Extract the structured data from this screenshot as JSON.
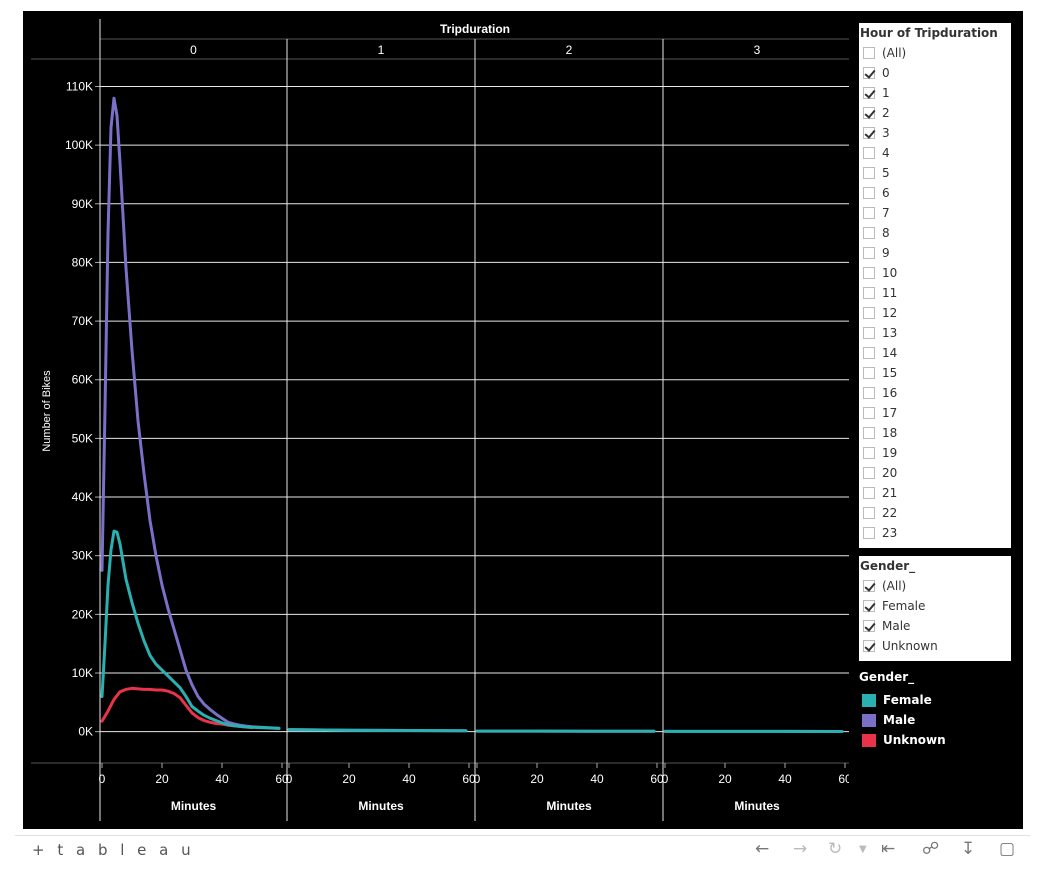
{
  "chart_data": {
    "type": "line",
    "column_header": "Tripduration",
    "panels": [
      "0",
      "1",
      "2",
      "3"
    ],
    "ylabel": "Number of Bikes",
    "xlabel": "Minutes",
    "ylim": [
      -5000,
      114000
    ],
    "yticks": [
      0,
      10000,
      20000,
      30000,
      40000,
      50000,
      60000,
      70000,
      80000,
      90000,
      100000,
      110000
    ],
    "ytick_labels": [
      "0K",
      "10K",
      "20K",
      "30K",
      "40K",
      "50K",
      "60K",
      "70K",
      "80K",
      "90K",
      "100K",
      "110K"
    ],
    "xlim": [
      0,
      60
    ],
    "xticks": [
      0,
      20,
      40,
      60
    ],
    "xtick_labels": [
      "0",
      "20",
      "40",
      "60"
    ],
    "grid": true,
    "colors": {
      "Female": "#2ab0b0",
      "Male": "#7a70c8",
      "Unknown": "#e8334a"
    },
    "series": [
      {
        "name": "Male",
        "panel": "0",
        "x": [
          0,
          1,
          2,
          3,
          4,
          5,
          6,
          7,
          8,
          10,
          12,
          14,
          16,
          18,
          20,
          22,
          24,
          26,
          28,
          30,
          32,
          34,
          36,
          38,
          40,
          42,
          44,
          46,
          48,
          50,
          55,
          59
        ],
        "y": [
          27500,
          55000,
          85000,
          103000,
          108000,
          105000,
          97000,
          88000,
          79000,
          65000,
          53000,
          44000,
          36000,
          30000,
          25000,
          21000,
          17500,
          14000,
          10500,
          8000,
          6000,
          4700,
          3800,
          3000,
          2300,
          1600,
          1300,
          1100,
          950,
          850,
          700,
          600
        ]
      },
      {
        "name": "Female",
        "panel": "0",
        "x": [
          0,
          1,
          2,
          3,
          4,
          5,
          6,
          7,
          8,
          10,
          12,
          14,
          16,
          18,
          20,
          22,
          24,
          26,
          28,
          30,
          32,
          34,
          36,
          38,
          40,
          42,
          44,
          46,
          48,
          50,
          55,
          59
        ],
        "y": [
          6000,
          15000,
          25000,
          31000,
          34200,
          34000,
          32000,
          29000,
          26000,
          22000,
          18500,
          15500,
          13000,
          11500,
          10500,
          9500,
          8500,
          7500,
          6000,
          4300,
          3500,
          2800,
          2300,
          1900,
          1500,
          1200,
          1000,
          900,
          800,
          750,
          650,
          550
        ]
      },
      {
        "name": "Unknown",
        "panel": "0",
        "x": [
          0,
          2,
          4,
          6,
          8,
          10,
          12,
          14,
          16,
          18,
          20,
          22,
          24,
          26,
          28,
          30,
          32,
          34,
          36,
          38,
          40,
          42,
          44,
          46,
          48,
          50
        ],
        "y": [
          1800,
          3500,
          5500,
          6800,
          7200,
          7400,
          7300,
          7200,
          7200,
          7100,
          7100,
          6900,
          6500,
          5800,
          4500,
          3200,
          2400,
          1900,
          1600,
          1400,
          1300,
          1100,
          1000,
          900,
          800,
          700
        ]
      },
      {
        "name": "Male",
        "panel": "1",
        "x": [
          0,
          20,
          40,
          59
        ],
        "y": [
          350,
          250,
          200,
          150
        ]
      },
      {
        "name": "Female",
        "panel": "1",
        "x": [
          0,
          20,
          40,
          59
        ],
        "y": [
          350,
          250,
          200,
          150
        ]
      },
      {
        "name": "Male",
        "panel": "2",
        "x": [
          0,
          20,
          40,
          59
        ],
        "y": [
          100,
          100,
          80,
          60
        ]
      },
      {
        "name": "Female",
        "panel": "2",
        "x": [
          0,
          20,
          40,
          59
        ],
        "y": [
          100,
          100,
          80,
          60
        ]
      },
      {
        "name": "Male",
        "panel": "3",
        "x": [
          0,
          20,
          40,
          59
        ],
        "y": [
          50,
          50,
          40,
          30
        ]
      },
      {
        "name": "Female",
        "panel": "3",
        "x": [
          0,
          20,
          40,
          59
        ],
        "y": [
          50,
          50,
          40,
          30
        ]
      }
    ]
  },
  "filters": {
    "hour": {
      "title": "Hour of Tripduration",
      "items": [
        {
          "label": "(All)",
          "checked": false
        },
        {
          "label": "0",
          "checked": true
        },
        {
          "label": "1",
          "checked": true
        },
        {
          "label": "2",
          "checked": true
        },
        {
          "label": "3",
          "checked": true
        },
        {
          "label": "4",
          "checked": false
        },
        {
          "label": "5",
          "checked": false
        },
        {
          "label": "6",
          "checked": false
        },
        {
          "label": "7",
          "checked": false
        },
        {
          "label": "8",
          "checked": false
        },
        {
          "label": "9",
          "checked": false
        },
        {
          "label": "10",
          "checked": false
        },
        {
          "label": "11",
          "checked": false
        },
        {
          "label": "12",
          "checked": false
        },
        {
          "label": "13",
          "checked": false
        },
        {
          "label": "14",
          "checked": false
        },
        {
          "label": "15",
          "checked": false
        },
        {
          "label": "16",
          "checked": false
        },
        {
          "label": "17",
          "checked": false
        },
        {
          "label": "18",
          "checked": false
        },
        {
          "label": "19",
          "checked": false
        },
        {
          "label": "20",
          "checked": false
        },
        {
          "label": "21",
          "checked": false
        },
        {
          "label": "22",
          "checked": false
        },
        {
          "label": "23",
          "checked": false
        }
      ]
    },
    "gender": {
      "title": "Gender_",
      "items": [
        {
          "label": "(All)",
          "checked": true
        },
        {
          "label": "Female",
          "checked": true
        },
        {
          "label": "Male",
          "checked": true
        },
        {
          "label": "Unknown",
          "checked": true
        }
      ]
    }
  },
  "legend": {
    "title": "Gender_",
    "items": [
      {
        "label": "Female",
        "color": "#2ab0b0"
      },
      {
        "label": "Male",
        "color": "#7a70c8"
      },
      {
        "label": "Unknown",
        "color": "#e8334a"
      }
    ]
  },
  "toolbar": {
    "brand": "+ t a b l e a u",
    "icons": [
      "tableau-logo-icon",
      "undo-icon",
      "redo-icon",
      "revert-icon",
      "revert-dropdown-icon",
      "reset-icon",
      "share-icon",
      "download-icon",
      "fullscreen-icon"
    ]
  }
}
